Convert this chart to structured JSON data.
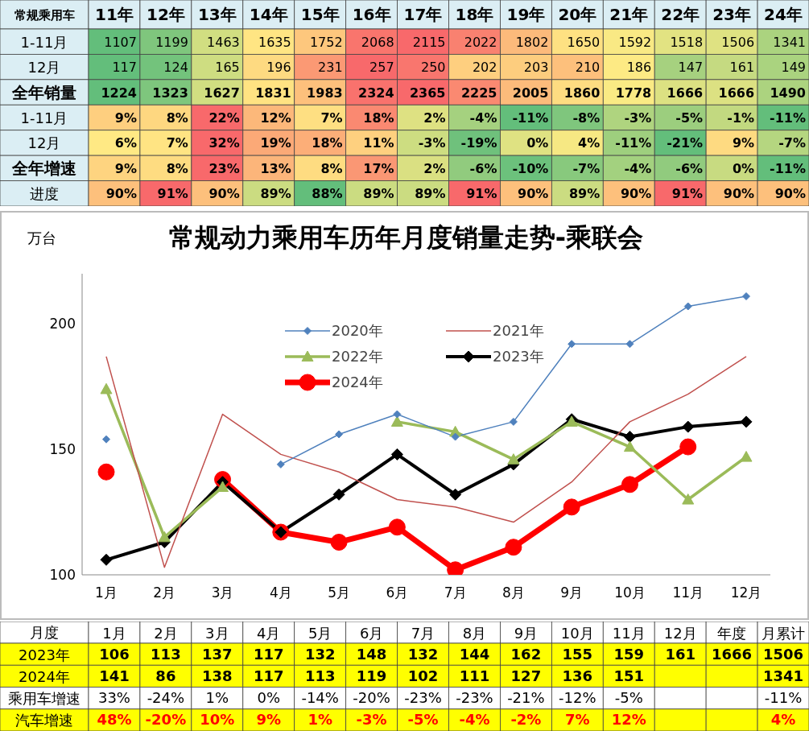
{
  "chart_data": [
    {
      "type": "heatmap",
      "title": "常规乘用车",
      "categories": [
        "11年",
        "12年",
        "13年",
        "14年",
        "15年",
        "16年",
        "17年",
        "18年",
        "19年",
        "20年",
        "21年",
        "22年",
        "23年",
        "24年"
      ],
      "y_categories": [
        "1-11月",
        "12月",
        "全年销量",
        "1-11月",
        "12月",
        "全年增速",
        "进度"
      ],
      "cells": [
        [
          1107,
          1199,
          1463,
          1635,
          1752,
          2068,
          2115,
          2022,
          1802,
          1650,
          1592,
          1518,
          1506,
          1341
        ],
        [
          117,
          124,
          165,
          196,
          231,
          257,
          250,
          202,
          203,
          210,
          186,
          147,
          161,
          149
        ],
        [
          1224,
          1323,
          1627,
          1831,
          1983,
          2324,
          2365,
          2225,
          2005,
          1860,
          1778,
          1666,
          1666,
          1490
        ],
        [
          9,
          8,
          22,
          12,
          7,
          18,
          2,
          -4,
          -11,
          -8,
          -3,
          -5,
          -1,
          -11
        ],
        [
          6,
          7,
          32,
          19,
          18,
          11,
          -3,
          -19,
          0,
          4,
          -11,
          -21,
          9,
          -7
        ],
        [
          9,
          8,
          23,
          13,
          8,
          17,
          2,
          -6,
          -10,
          -7,
          -4,
          -6,
          0,
          -11
        ],
        [
          90,
          91,
          90,
          89,
          88,
          89,
          89,
          91,
          90,
          89,
          90,
          91,
          90,
          90
        ]
      ],
      "cell_labels": [
        [
          "1107",
          "1199",
          "1463",
          "1635",
          "1752",
          "2068",
          "2115",
          "2022",
          "1802",
          "1650",
          "1592",
          "1518",
          "1506",
          "1341"
        ],
        [
          "117",
          "124",
          "165",
          "196",
          "231",
          "257",
          "250",
          "202",
          "203",
          "210",
          "186",
          "147",
          "161",
          "149"
        ],
        [
          "1224",
          "1323",
          "1627",
          "1831",
          "1983",
          "2324",
          "2365",
          "2225",
          "2005",
          "1860",
          "1778",
          "1666",
          "1666",
          "1490"
        ],
        [
          "9%",
          "8%",
          "22%",
          "12%",
          "7%",
          "18%",
          "2%",
          "-4%",
          "-11%",
          "-8%",
          "-3%",
          "-5%",
          "-1%",
          "-11%"
        ],
        [
          "6%",
          "7%",
          "32%",
          "19%",
          "18%",
          "11%",
          "-3%",
          "-19%",
          "0%",
          "4%",
          "-11%",
          "-21%",
          "9%",
          "-7%"
        ],
        [
          "9%",
          "8%",
          "23%",
          "13%",
          "8%",
          "17%",
          "2%",
          "-6%",
          "-10%",
          "-7%",
          "-4%",
          "-6%",
          "0%",
          "-11%"
        ],
        [
          "90%",
          "91%",
          "90%",
          "89%",
          "88%",
          "89%",
          "89%",
          "91%",
          "90%",
          "89%",
          "90%",
          "91%",
          "90%",
          "90%"
        ]
      ]
    },
    {
      "type": "line",
      "title": "常规动力乘用车历年月度销量走势-乘联会",
      "ylabel": "万台",
      "categories": [
        "1月",
        "2月",
        "3月",
        "4月",
        "5月",
        "6月",
        "7月",
        "8月",
        "9月",
        "10月",
        "11月",
        "12月"
      ],
      "ylim": [
        100,
        220
      ],
      "yticks": [
        100,
        150,
        200
      ],
      "legend": "top",
      "line_style": "solid",
      "series": [
        {
          "name": "2020年",
          "color": "#4f81bd",
          "marker": "diamond",
          "values": [
            154,
            null,
            null,
            144,
            156,
            164,
            155,
            161,
            192,
            192,
            207,
            211
          ]
        },
        {
          "name": "2021年",
          "color": "#c0504d",
          "marker": "none",
          "values": [
            187,
            103,
            164,
            148,
            141,
            130,
            127,
            121,
            137,
            161,
            172,
            187
          ]
        },
        {
          "name": "2022年",
          "color": "#9bbb59",
          "marker": "triangle",
          "values": [
            174,
            115,
            135,
            null,
            null,
            161,
            157,
            146,
            161,
            151,
            130,
            147
          ]
        },
        {
          "name": "2023年",
          "color": "#000000",
          "marker": "diamond",
          "values": [
            106,
            113,
            137,
            117,
            132,
            148,
            132,
            144,
            162,
            155,
            159,
            161
          ]
        },
        {
          "name": "2024年",
          "color": "#ff0000",
          "marker": "circle",
          "values": [
            141,
            null,
            138,
            117,
            113,
            119,
            102,
            111,
            127,
            136,
            151,
            null
          ]
        }
      ]
    },
    {
      "type": "heatmap",
      "title": "月度",
      "categories": [
        "1月",
        "2月",
        "3月",
        "4月",
        "5月",
        "6月",
        "7月",
        "8月",
        "9月",
        "10月",
        "11月",
        "12月",
        "年度",
        "月累计"
      ],
      "y_categories": [
        "2023年",
        "2024年",
        "乘用车增速",
        "汽车增速"
      ],
      "cells": [
        [
          106,
          113,
          137,
          117,
          132,
          148,
          132,
          144,
          162,
          155,
          159,
          161,
          1666,
          1506
        ],
        [
          141,
          86,
          138,
          117,
          113,
          119,
          102,
          111,
          127,
          136,
          151,
          null,
          null,
          1341
        ],
        [
          33,
          -24,
          1,
          0,
          -14,
          -20,
          -23,
          -23,
          -21,
          -12,
          -5,
          null,
          null,
          -11
        ],
        [
          48,
          -20,
          10,
          9,
          1,
          -3,
          -5,
          -4,
          -2,
          7,
          12,
          null,
          null,
          4
        ]
      ],
      "cell_labels": [
        [
          "106",
          "113",
          "137",
          "117",
          "132",
          "148",
          "132",
          "144",
          "162",
          "155",
          "159",
          "161",
          "1666",
          "1506"
        ],
        [
          "141",
          "86",
          "138",
          "117",
          "113",
          "119",
          "102",
          "111",
          "127",
          "136",
          "151",
          null,
          null,
          "1341"
        ],
        [
          "33%",
          "-24%",
          "1%",
          "0%",
          "-14%",
          "-20%",
          "-23%",
          "-23%",
          "-21%",
          "-12%",
          "-5%",
          null,
          null,
          "-11%"
        ],
        [
          "48%",
          "-20%",
          "10%",
          "9%",
          "1%",
          "-3%",
          "-5%",
          "-4%",
          "-2%",
          "7%",
          "12%",
          null,
          null,
          "4%"
        ]
      ]
    }
  ]
}
